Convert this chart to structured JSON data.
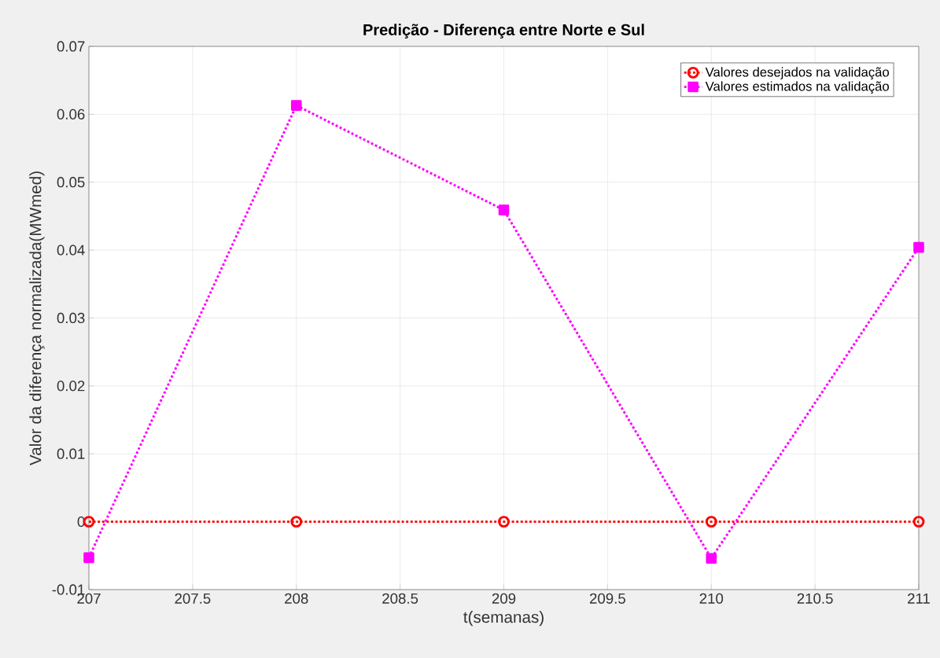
{
  "chart_data": {
    "type": "line",
    "title": "**Predição - Diferença entre Norte e Sul**",
    "xlabel": "t(semanas)",
    "ylabel": "Valor da diferença normalizada(MWmed)",
    "x": [
      207,
      208,
      209,
      210,
      211
    ],
    "series": [
      {
        "name": "Valores desejados na validação",
        "color": "#ff0000",
        "marker": "circle",
        "values": [
          0,
          0,
          0,
          0,
          0
        ]
      },
      {
        "name": "Valores estimados na validação",
        "color": "#ff00ff",
        "marker": "square",
        "values": [
          -0.0053,
          0.0613,
          0.0459,
          -0.0054,
          0.0404
        ]
      }
    ],
    "xlim": [
      207,
      211
    ],
    "xticks": [
      207,
      207.5,
      208,
      208.5,
      209,
      209.5,
      210,
      210.5,
      211
    ],
    "ylim": [
      -0.01,
      0.07
    ],
    "yticks": [
      -0.01,
      0,
      0.01,
      0.02,
      0.03,
      0.04,
      0.05,
      0.06,
      0.07
    ],
    "grid": true,
    "legend": "top right",
    "line_style": "dotted"
  }
}
